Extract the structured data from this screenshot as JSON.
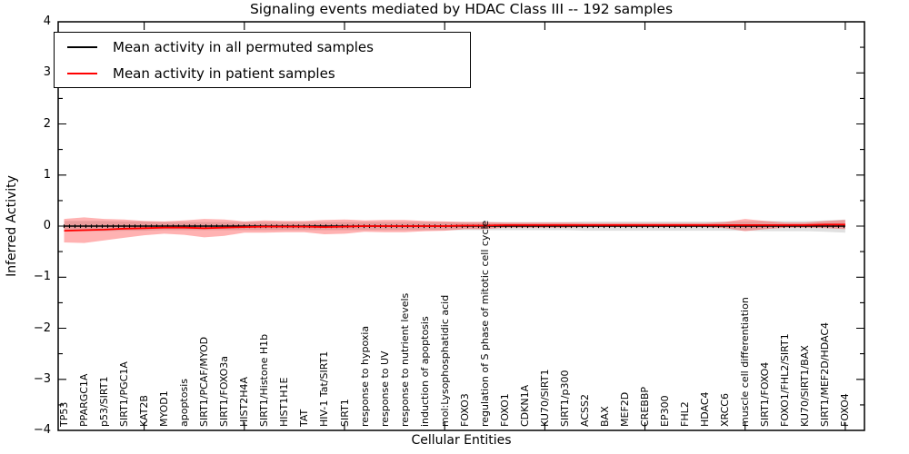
{
  "figure": {
    "title": "Signaling events mediated by HDAC Class III -- 192 samples",
    "sample_count": 192,
    "legend": [
      {
        "label": "Mean activity in all permuted samples",
        "color": "#000000"
      },
      {
        "label": "Mean activity in patient samples",
        "color": "#ff0000"
      }
    ]
  },
  "chart_data": {
    "type": "line",
    "title": "Signaling events mediated by HDAC Class III -- 192 samples",
    "xlabel": "Cellular Entities",
    "ylabel": "Inferred Activity",
    "ylim": [
      -4,
      4
    ],
    "grid": false,
    "legend_position": "upper left",
    "y_major_ticks": [
      {
        "value": 4,
        "label": "4"
      },
      {
        "value": 3,
        "label": "3"
      },
      {
        "value": 2,
        "label": "2"
      },
      {
        "value": 1,
        "label": "1"
      },
      {
        "value": 0,
        "label": "0"
      },
      {
        "value": -1,
        "label": "−1"
      },
      {
        "value": -2,
        "label": "−2"
      },
      {
        "value": -3,
        "label": "−3"
      },
      {
        "value": -4,
        "label": "−4"
      }
    ],
    "y_minor_tick_step": 0.5,
    "x_major_tick_positions": [
      5,
      10,
      15,
      20,
      25,
      30,
      35,
      40
    ],
    "categories": [
      "TP53",
      "PPARGC1A",
      "p53/SIRT1",
      "SIRT1/PGC1A",
      "KAT2B",
      "MYOD1",
      "apoptosis",
      "SIRT1/PCAF/MYOD",
      "SIRT1/FOXO3a",
      "HIST2H4A",
      "SIRT1/Histone H1b",
      "HIST1H1E",
      "TAT",
      "HIV-1 Tat/SIRT1",
      "SIRT1",
      "response to hypoxia",
      "response to UV",
      "response to nutrient levels",
      "induction of apoptosis",
      "mol:Lysophosphatidic acid",
      "FOXO3",
      "regulation of S phase of mitotic cell cycle",
      "FOXO1",
      "CDKN1A",
      "KU70/SIRT1",
      "SIRT1/p300",
      "ACSS2",
      "BAX",
      "MEF2D",
      "CREBBP",
      "EP300",
      "FHL2",
      "HDAC4",
      "XRCC6",
      "muscle cell differentiation",
      "SIRT1/FOXO4",
      "FOXO1/FHL2/SIRT1",
      "KU70/SIRT1/BAX",
      "SIRT1/MEF2D/HDAC4",
      "FOXO4"
    ],
    "series": [
      {
        "name": "Mean activity in all permuted samples",
        "color": "#000000",
        "band_fill": "rgba(0,0,0,0.12)",
        "mean": [
          0,
          0,
          0,
          0,
          0,
          0,
          0,
          0,
          0,
          0,
          0,
          0,
          0,
          0,
          0,
          0,
          0,
          0,
          0,
          0,
          0,
          0,
          0,
          0,
          0,
          0,
          0,
          0,
          0,
          0,
          0,
          0,
          0,
          0,
          0,
          0,
          0,
          0,
          0,
          0
        ],
        "std": [
          0.1,
          0.1,
          0.1,
          0.09,
          0.09,
          0.08,
          0.08,
          0.08,
          0.08,
          0.08,
          0.08,
          0.08,
          0.08,
          0.08,
          0.08,
          0.08,
          0.08,
          0.08,
          0.08,
          0.08,
          0.08,
          0.08,
          0.08,
          0.08,
          0.08,
          0.08,
          0.09,
          0.09,
          0.09,
          0.09,
          0.09,
          0.09,
          0.09,
          0.09,
          0.09,
          0.1,
          0.1,
          0.1,
          0.11,
          0.13
        ]
      },
      {
        "name": "Mean activity in patient samples",
        "color": "#ff0000",
        "band_fill": "rgba(255,0,0,0.30)",
        "mean": [
          -0.09,
          -0.08,
          -0.07,
          -0.05,
          -0.04,
          -0.03,
          -0.03,
          -0.04,
          -0.03,
          -0.02,
          -0.01,
          -0.01,
          -0.01,
          -0.02,
          -0.01,
          0,
          0,
          0,
          0,
          0,
          0.01,
          0.01,
          0.02,
          0.02,
          0.02,
          0.02,
          0.02,
          0.02,
          0.02,
          0.02,
          0.02,
          0.02,
          0.02,
          0.02,
          0.02,
          0.02,
          0.02,
          0.02,
          0.03,
          0.03
        ],
        "std": [
          0.23,
          0.25,
          0.21,
          0.18,
          0.14,
          0.12,
          0.14,
          0.18,
          0.16,
          0.11,
          0.12,
          0.11,
          0.11,
          0.14,
          0.14,
          0.11,
          0.12,
          0.12,
          0.1,
          0.09,
          0.07,
          0.07,
          0.05,
          0.05,
          0.05,
          0.05,
          0.04,
          0.04,
          0.04,
          0.04,
          0.04,
          0.04,
          0.04,
          0.06,
          0.12,
          0.08,
          0.05,
          0.05,
          0.07,
          0.09
        ]
      }
    ]
  }
}
